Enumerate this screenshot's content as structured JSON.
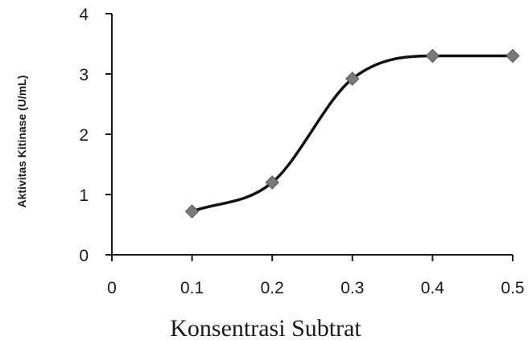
{
  "chart_data": {
    "type": "line",
    "xlabel": "Konsentrasi Subtrat",
    "ylabel": "Aktivitas Kitinase (U/mL)",
    "xlim": [
      0,
      0.5
    ],
    "ylim": [
      0,
      4
    ],
    "x_ticks": [
      "0",
      "0.1",
      "0.2",
      "0.3",
      "0.4",
      "0.5"
    ],
    "y_ticks": [
      "0",
      "1",
      "2",
      "3",
      "4"
    ],
    "smooth": true,
    "grid": false,
    "series": [
      {
        "x": [
          0.1,
          0.2,
          0.3,
          0.4,
          0.5
        ],
        "values": [
          0.72,
          1.2,
          2.92,
          3.3,
          3.3
        ],
        "marker": "diamond",
        "line_color": "#111111",
        "marker_color": "#7a7a7a"
      }
    ]
  }
}
